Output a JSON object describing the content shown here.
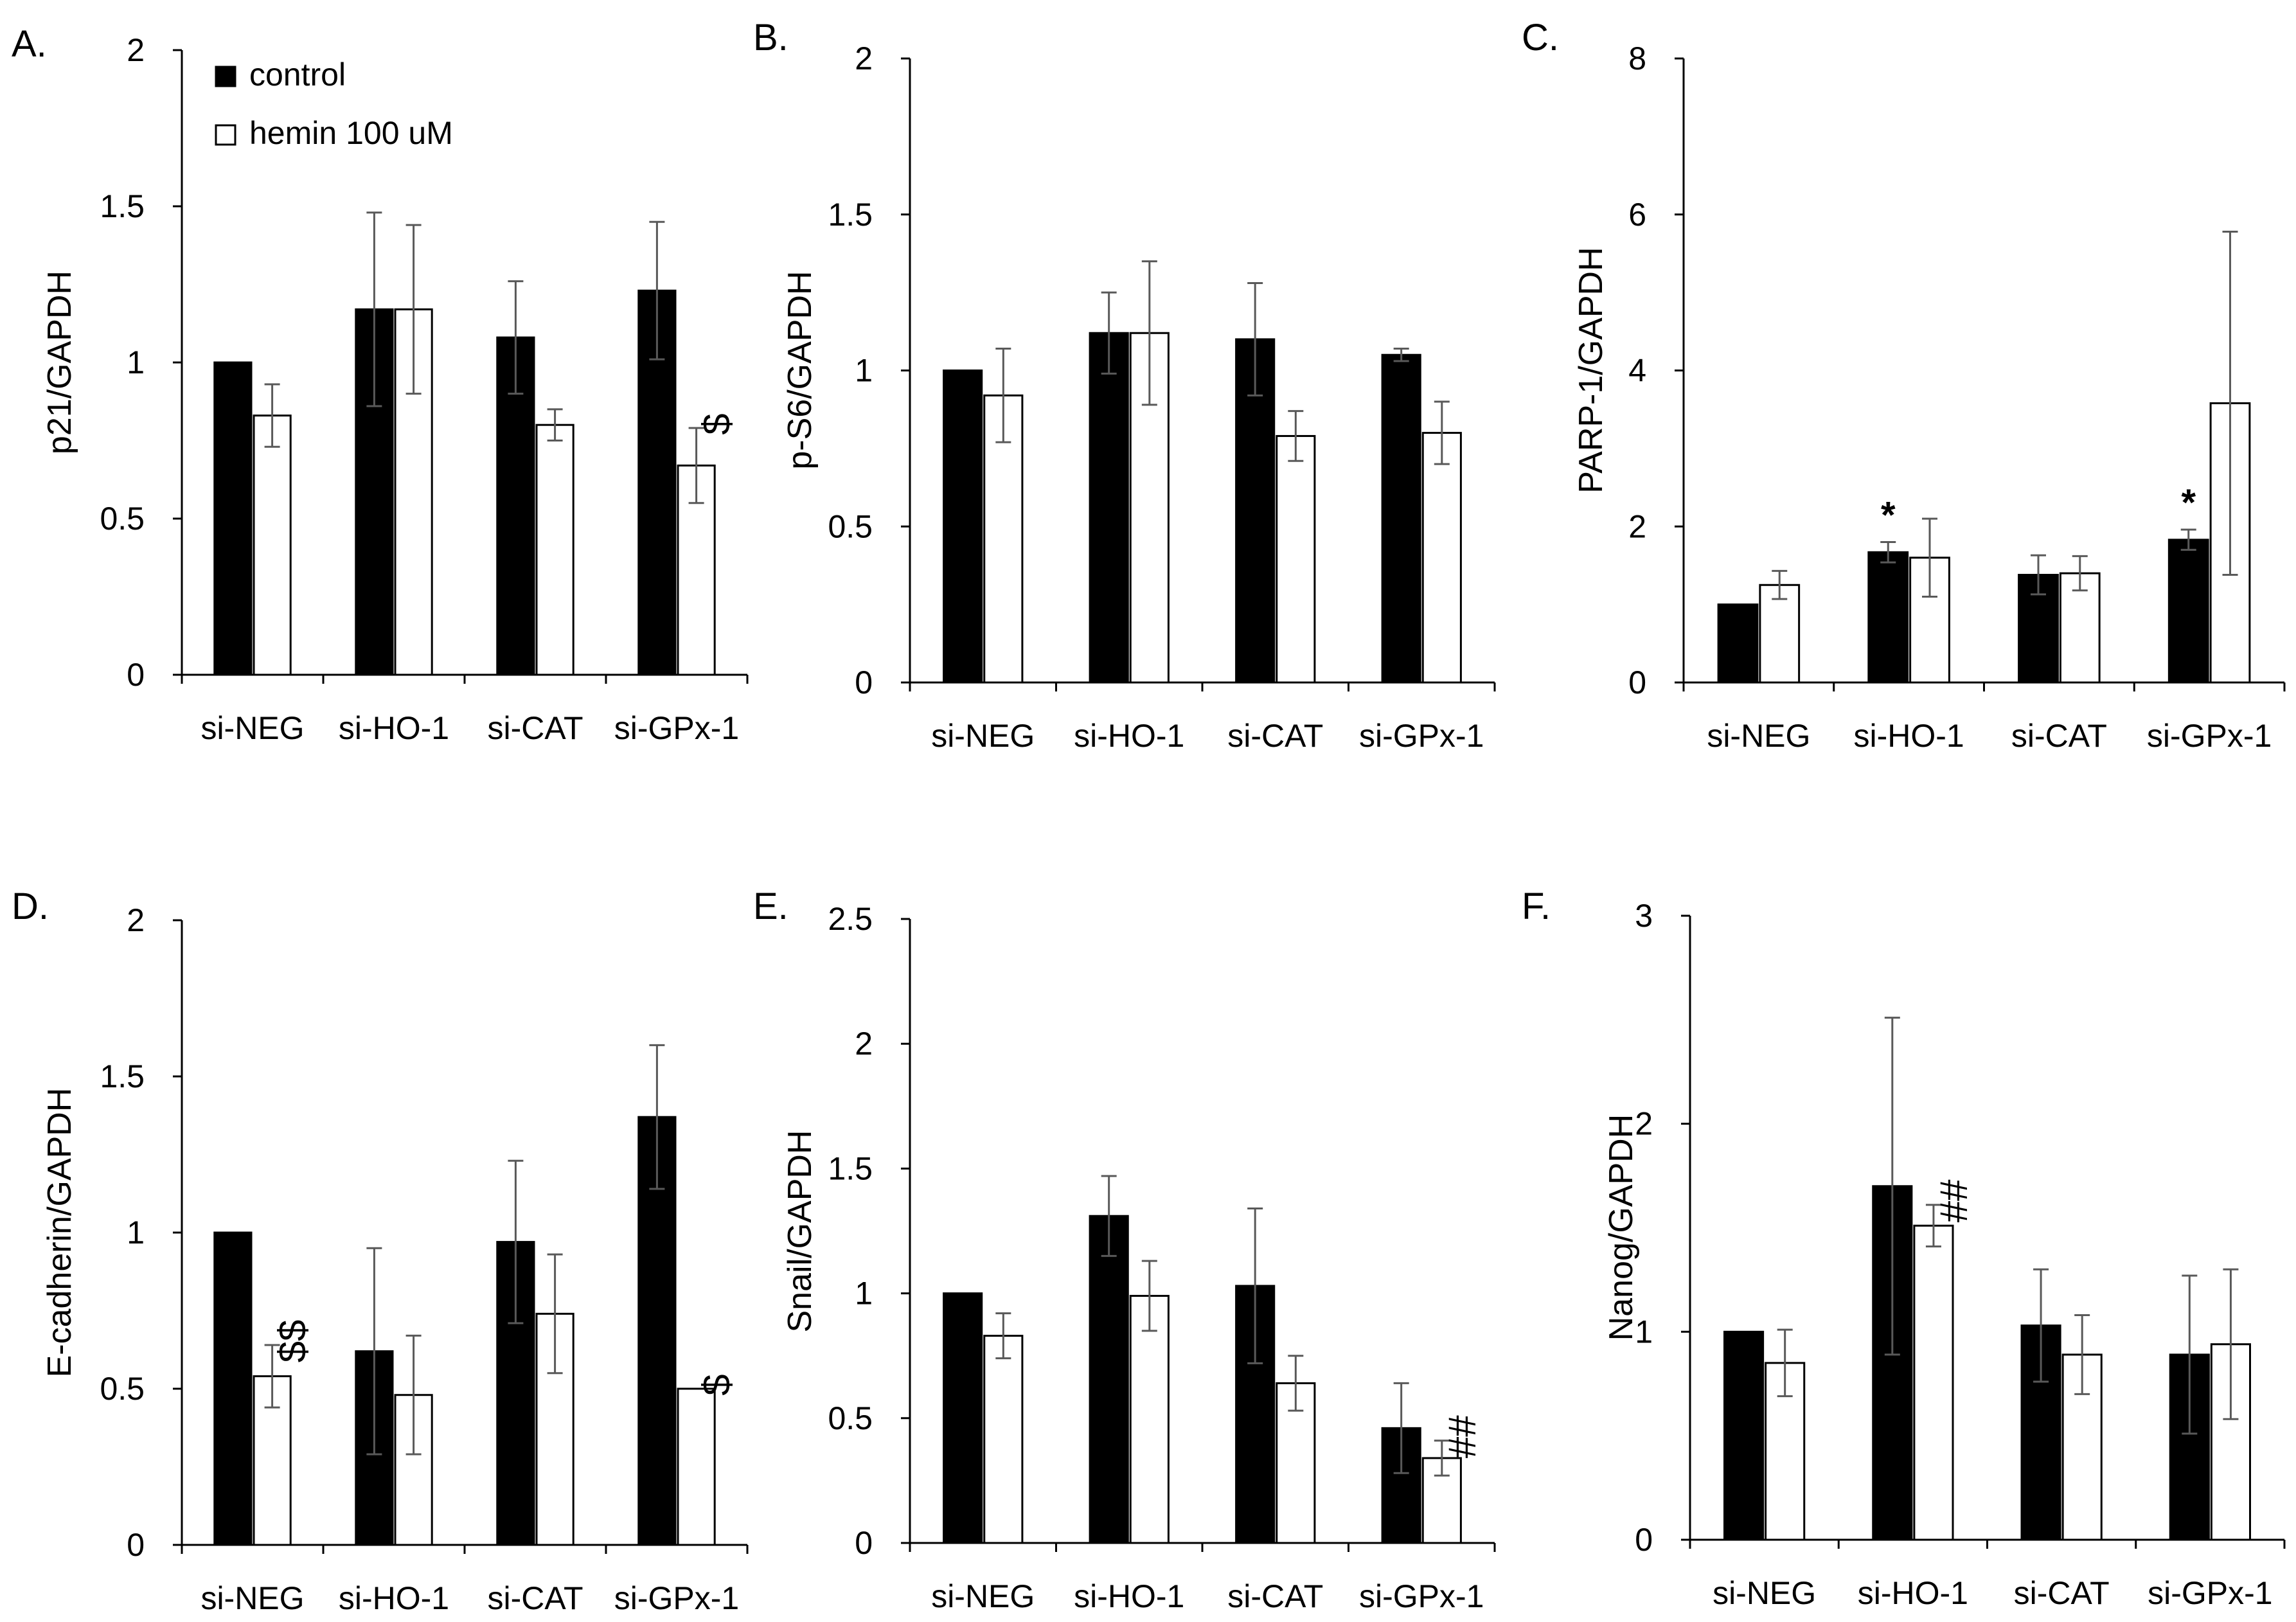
{
  "legend": {
    "control": "control",
    "hemin": "hemin 100 uM"
  },
  "colors": {
    "control": "#000000",
    "hemin": "#ffffff",
    "bar_stroke": "#000000",
    "axis": "#000000",
    "error": "#595959"
  },
  "chart_data": [
    {
      "id": "A",
      "panel_label": "A.",
      "type": "bar",
      "ylabel": "p21/GAPDH",
      "ylim": [
        0,
        2
      ],
      "yticks": [
        0,
        0.5,
        1,
        1.5,
        2
      ],
      "ytick_labels": [
        "0",
        "0.5",
        "1",
        "1.5",
        "2"
      ],
      "categories": [
        "si-NEG",
        "si-HO-1",
        "si-CAT",
        "si-GPx-1"
      ],
      "series": [
        {
          "name": "control",
          "values": [
            1.0,
            1.17,
            1.08,
            1.23
          ],
          "errors": [
            0.0,
            0.31,
            0.18,
            0.22
          ]
        },
        {
          "name": "hemin 100 uM",
          "values": [
            0.83,
            1.17,
            0.8,
            0.67
          ],
          "errors": [
            0.1,
            0.27,
            0.05,
            0.12
          ]
        }
      ],
      "annotations": [
        {
          "text": "$",
          "category": 3,
          "series": 1,
          "style": "sigd"
        }
      ],
      "show_legend": true
    },
    {
      "id": "B",
      "panel_label": "B.",
      "type": "bar",
      "ylabel": "p-S6/GAPDH",
      "ylim": [
        0,
        2
      ],
      "yticks": [
        0,
        0.5,
        1,
        1.5,
        2
      ],
      "ytick_labels": [
        "0",
        "0.5",
        "1",
        "1.5",
        "2"
      ],
      "categories": [
        "si-NEG",
        "si-HO-1",
        "si-CAT",
        "si-GPx-1"
      ],
      "series": [
        {
          "name": "control",
          "values": [
            1.0,
            1.12,
            1.1,
            1.05
          ],
          "errors": [
            0.0,
            0.13,
            0.18,
            0.02
          ]
        },
        {
          "name": "hemin 100 uM",
          "values": [
            0.92,
            1.12,
            0.79,
            0.8
          ],
          "errors": [
            0.15,
            0.23,
            0.08,
            0.1
          ]
        }
      ],
      "annotations": []
    },
    {
      "id": "C",
      "panel_label": "C.",
      "type": "bar",
      "ylabel": "PARP-1/GAPDH",
      "ylim": [
        0,
        8
      ],
      "yticks": [
        0,
        2,
        4,
        6,
        8
      ],
      "ytick_labels": [
        "0",
        "2",
        "4",
        "6",
        "8"
      ],
      "categories": [
        "si-NEG",
        "si-HO-1",
        "si-CAT",
        "si-GPx-1"
      ],
      "series": [
        {
          "name": "control",
          "values": [
            1.0,
            1.67,
            1.38,
            1.83
          ],
          "errors": [
            0.0,
            0.13,
            0.25,
            0.13
          ]
        },
        {
          "name": "hemin 100 uM",
          "values": [
            1.25,
            1.6,
            1.4,
            3.58
          ],
          "errors": [
            0.18,
            0.5,
            0.22,
            2.2
          ]
        }
      ],
      "annotations": [
        {
          "text": "*",
          "category": 1,
          "series": 0,
          "style": "sig"
        },
        {
          "text": "*",
          "category": 3,
          "series": 0,
          "style": "sig"
        }
      ]
    },
    {
      "id": "D",
      "panel_label": "D.",
      "type": "bar",
      "ylabel": "E-cadherin/GAPDH",
      "ylim": [
        0,
        2
      ],
      "yticks": [
        0,
        0.5,
        1,
        1.5,
        2
      ],
      "ytick_labels": [
        "0",
        "0.5",
        "1",
        "1.5",
        "2"
      ],
      "categories": [
        "si-NEG",
        "si-HO-1",
        "si-CAT",
        "si-GPx-1"
      ],
      "series": [
        {
          "name": "control",
          "values": [
            1.0,
            0.62,
            0.97,
            1.37
          ],
          "errors": [
            0.0,
            0.33,
            0.26,
            0.23
          ]
        },
        {
          "name": "hemin 100 uM",
          "values": [
            0.54,
            0.48,
            0.74,
            0.5
          ],
          "errors": [
            0.1,
            0.19,
            0.19,
            0.0
          ]
        }
      ],
      "annotations": [
        {
          "text": "$$",
          "category": 0,
          "series": 1,
          "style": "sigd"
        },
        {
          "text": "$",
          "category": 3,
          "series": 1,
          "style": "sigd"
        }
      ]
    },
    {
      "id": "E",
      "panel_label": "E.",
      "type": "bar",
      "ylabel": "Snail/GAPDH",
      "ylim": [
        0,
        2.5
      ],
      "yticks": [
        0,
        0.5,
        1,
        1.5,
        2,
        2.5
      ],
      "ytick_labels": [
        "0",
        "0.5",
        "1",
        "1.5",
        "2",
        "2.5"
      ],
      "categories": [
        "si-NEG",
        "si-HO-1",
        "si-CAT",
        "si-GPx-1"
      ],
      "series": [
        {
          "name": "control",
          "values": [
            1.0,
            1.31,
            1.03,
            0.46
          ],
          "errors": [
            0.0,
            0.16,
            0.31,
            0.18
          ]
        },
        {
          "name": "hemin 100 uM",
          "values": [
            0.83,
            0.99,
            0.64,
            0.34
          ],
          "errors": [
            0.09,
            0.14,
            0.11,
            0.07
          ]
        }
      ],
      "annotations": [
        {
          "text": "##",
          "category": 3,
          "series": 1,
          "style": "sigd"
        }
      ]
    },
    {
      "id": "F",
      "panel_label": "F.",
      "type": "bar",
      "ylabel": "Nanog/GAPDH",
      "ylim": [
        0,
        3
      ],
      "yticks": [
        0,
        1,
        2,
        3
      ],
      "ytick_labels": [
        "0",
        "1",
        "2",
        "3"
      ],
      "categories": [
        "si-NEG",
        "si-HO-1",
        "si-CAT",
        "si-GPx-1"
      ],
      "series": [
        {
          "name": "control",
          "values": [
            1.0,
            1.7,
            1.03,
            0.89
          ],
          "errors": [
            0.0,
            0.81,
            0.27,
            0.38
          ]
        },
        {
          "name": "hemin 100 uM",
          "values": [
            0.85,
            1.51,
            0.89,
            0.94
          ],
          "errors": [
            0.16,
            0.1,
            0.19,
            0.36
          ]
        }
      ],
      "annotations": [
        {
          "text": "##",
          "category": 1,
          "series": 1,
          "style": "sigd"
        }
      ]
    }
  ]
}
